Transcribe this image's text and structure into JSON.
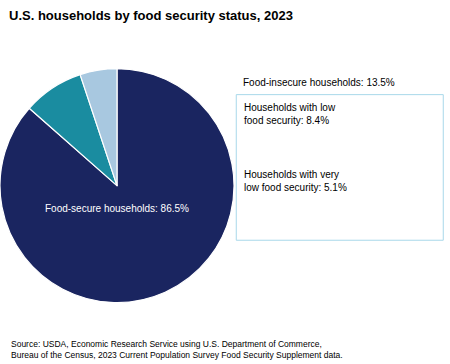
{
  "chart_data": {
    "type": "pie",
    "title": "U.S. households by food security status, 2023",
    "categories": [
      "Food-secure households: 86.5%",
      "Households with low\nfood security: 8.4%",
      "Households with very\nlow food security: 5.1%"
    ],
    "values": [
      86.5,
      8.4,
      5.1
    ],
    "colors": [
      "#1a2560",
      "#1a8ca0",
      "#a8c8e0"
    ],
    "annotations": [
      "Food-insecure households: 13.5%",
      "Source: USDA, Economic Research Service using U.S. Department of Commerce,\nBureau of the Census, 2023 Current Population Survey Food Security Supplement data."
    ]
  }
}
